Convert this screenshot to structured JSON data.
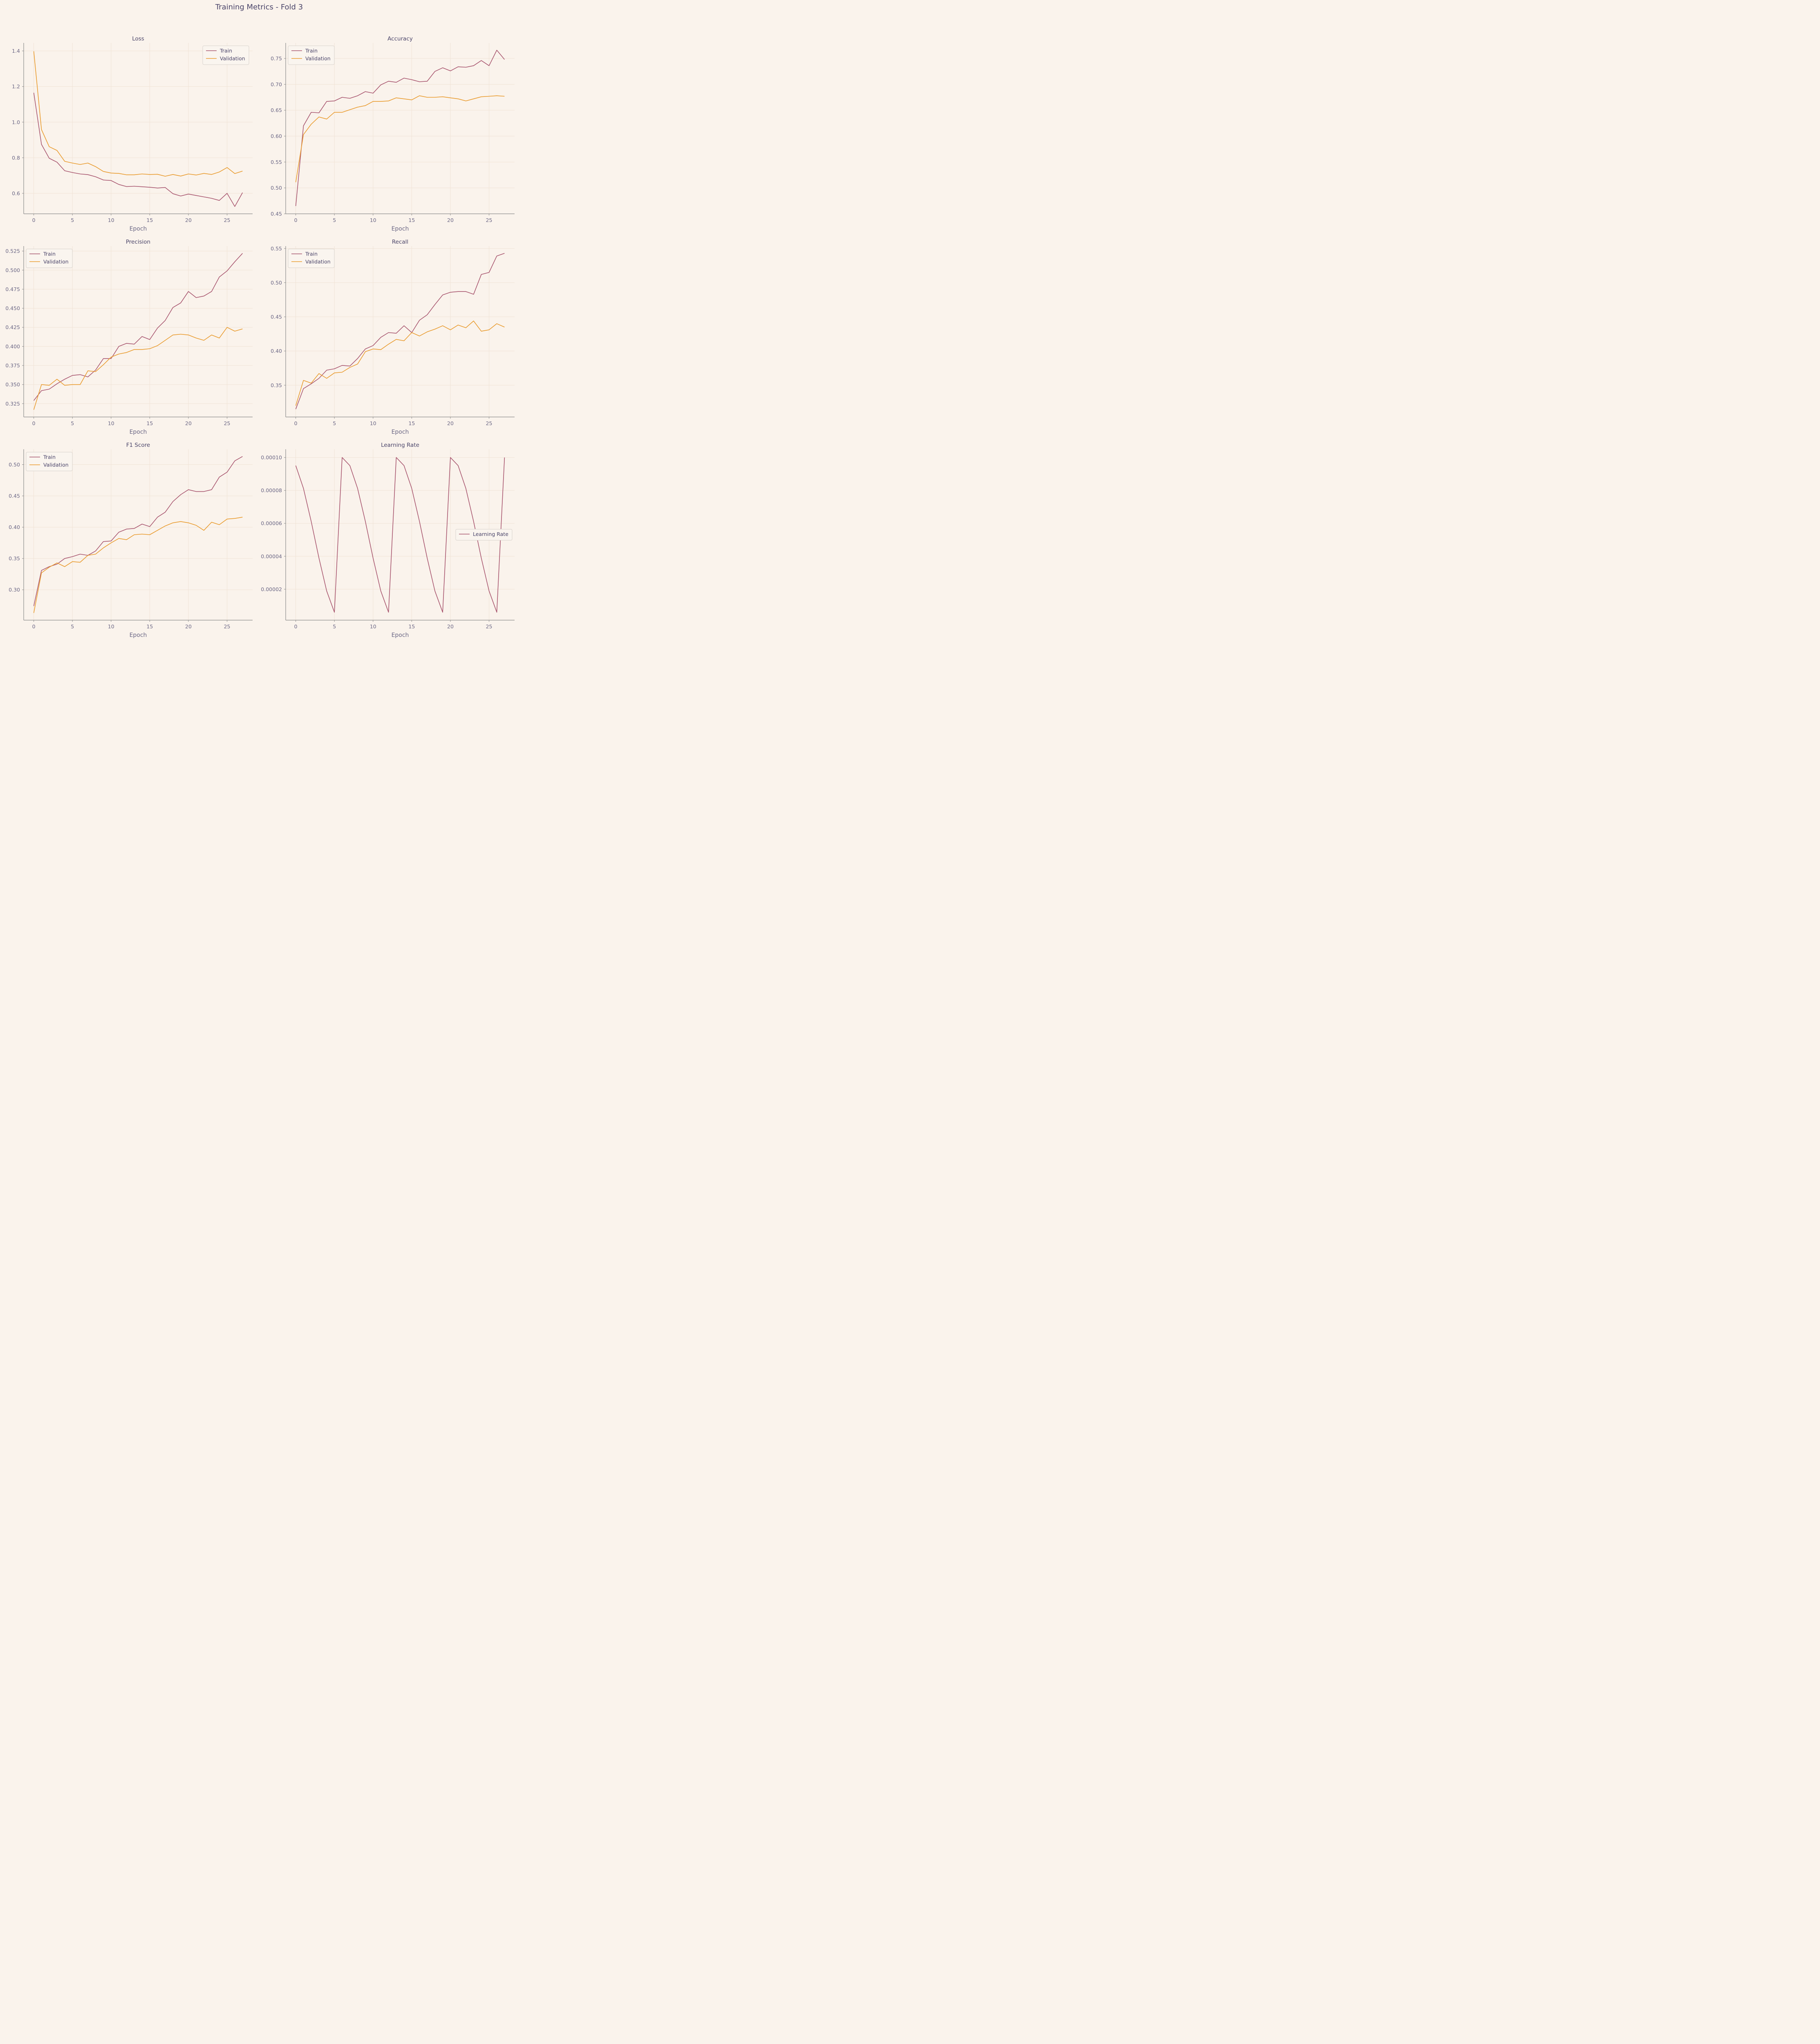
{
  "figure_title": "Training Metrics - Fold 3",
  "colors": {
    "train": "#a8566f",
    "validation": "#e99b2e",
    "background": "#faf3ec",
    "grid": "#f0e3d6",
    "axis": "#8a8a8a",
    "text": "#4a4469"
  },
  "chart_data": [
    {
      "type": "line",
      "title": "Loss",
      "xlabel": "Epoch",
      "ylabel": "",
      "xlim": [
        -1.3,
        28.3
      ],
      "ylim": [
        0.485,
        1.445
      ],
      "xticks": [
        0,
        5,
        10,
        15,
        20,
        25
      ],
      "yticks": [
        0.6,
        0.8,
        1.0,
        1.2,
        1.4
      ],
      "ytick_labels": [
        "0.6",
        "0.8",
        "1.0",
        "1.2",
        "1.4"
      ],
      "legend": "upper right",
      "x": [
        0,
        1,
        2,
        3,
        4,
        5,
        6,
        7,
        8,
        9,
        10,
        11,
        12,
        13,
        14,
        15,
        16,
        17,
        18,
        19,
        20,
        21,
        22,
        23,
        24,
        25,
        26,
        27
      ],
      "series": [
        {
          "name": "Train",
          "color": "#a8566f",
          "values": [
            1.165,
            0.875,
            0.797,
            0.775,
            0.727,
            0.717,
            0.709,
            0.705,
            0.693,
            0.675,
            0.672,
            0.65,
            0.638,
            0.64,
            0.637,
            0.634,
            0.63,
            0.633,
            0.598,
            0.585,
            0.596,
            0.588,
            0.58,
            0.572,
            0.56,
            0.6,
            0.526,
            0.604
          ]
        },
        {
          "name": "Validation",
          "color": "#e99b2e",
          "values": [
            1.398,
            0.958,
            0.862,
            0.841,
            0.78,
            0.77,
            0.762,
            0.77,
            0.75,
            0.723,
            0.714,
            0.712,
            0.704,
            0.704,
            0.709,
            0.706,
            0.707,
            0.696,
            0.706,
            0.697,
            0.709,
            0.703,
            0.712,
            0.706,
            0.72,
            0.745,
            0.711,
            0.725
          ]
        }
      ]
    },
    {
      "type": "line",
      "title": "Accuracy",
      "xlabel": "Epoch",
      "ylabel": "",
      "xlim": [
        -1.3,
        28.3
      ],
      "ylim": [
        0.45,
        0.78
      ],
      "xticks": [
        0,
        5,
        10,
        15,
        20,
        25
      ],
      "yticks": [
        0.45,
        0.5,
        0.55,
        0.6,
        0.65,
        0.7,
        0.75
      ],
      "ytick_labels": [
        "0.45",
        "0.50",
        "0.55",
        "0.60",
        "0.65",
        "0.70",
        "0.75"
      ],
      "legend": "upper left",
      "x": [
        0,
        1,
        2,
        3,
        4,
        5,
        6,
        7,
        8,
        9,
        10,
        11,
        12,
        13,
        14,
        15,
        16,
        17,
        18,
        19,
        20,
        21,
        22,
        23,
        24,
        25,
        26,
        27
      ],
      "series": [
        {
          "name": "Train",
          "color": "#a8566f",
          "values": [
            0.465,
            0.62,
            0.646,
            0.645,
            0.667,
            0.668,
            0.675,
            0.673,
            0.678,
            0.686,
            0.683,
            0.699,
            0.706,
            0.704,
            0.712,
            0.709,
            0.705,
            0.706,
            0.725,
            0.732,
            0.726,
            0.734,
            0.733,
            0.736,
            0.746,
            0.736,
            0.766,
            0.748
          ]
        },
        {
          "name": "Validation",
          "color": "#e99b2e",
          "values": [
            0.511,
            0.603,
            0.623,
            0.637,
            0.633,
            0.646,
            0.646,
            0.651,
            0.656,
            0.659,
            0.667,
            0.667,
            0.668,
            0.674,
            0.672,
            0.67,
            0.678,
            0.675,
            0.675,
            0.676,
            0.674,
            0.672,
            0.668,
            0.672,
            0.676,
            0.677,
            0.678,
            0.677
          ]
        }
      ]
    },
    {
      "type": "line",
      "title": "Precision",
      "xlabel": "Epoch",
      "ylabel": "",
      "xlim": [
        -1.3,
        28.3
      ],
      "ylim": [
        0.3075,
        0.5315
      ],
      "xticks": [
        0,
        5,
        10,
        15,
        20,
        25
      ],
      "yticks": [
        0.325,
        0.35,
        0.375,
        0.4,
        0.425,
        0.45,
        0.475,
        0.5,
        0.525
      ],
      "ytick_labels": [
        "0.325",
        "0.350",
        "0.375",
        "0.400",
        "0.425",
        "0.450",
        "0.475",
        "0.500",
        "0.525"
      ],
      "legend": "upper left",
      "x": [
        0,
        1,
        2,
        3,
        4,
        5,
        6,
        7,
        8,
        9,
        10,
        11,
        12,
        13,
        14,
        15,
        16,
        17,
        18,
        19,
        20,
        21,
        22,
        23,
        24,
        25,
        26,
        27
      ],
      "series": [
        {
          "name": "Train",
          "color": "#a8566f",
          "values": [
            0.329,
            0.342,
            0.344,
            0.351,
            0.357,
            0.362,
            0.363,
            0.36,
            0.369,
            0.384,
            0.384,
            0.4,
            0.404,
            0.403,
            0.413,
            0.409,
            0.424,
            0.434,
            0.451,
            0.457,
            0.472,
            0.464,
            0.466,
            0.472,
            0.491,
            0.499,
            0.511,
            0.522
          ]
        },
        {
          "name": "Validation",
          "color": "#e99b2e",
          "values": [
            0.317,
            0.35,
            0.349,
            0.357,
            0.349,
            0.35,
            0.35,
            0.368,
            0.367,
            0.376,
            0.386,
            0.39,
            0.392,
            0.396,
            0.396,
            0.397,
            0.401,
            0.408,
            0.415,
            0.416,
            0.415,
            0.411,
            0.408,
            0.415,
            0.411,
            0.425,
            0.42,
            0.423
          ]
        }
      ]
    },
    {
      "type": "line",
      "title": "Recall",
      "xlabel": "Epoch",
      "ylabel": "",
      "xlim": [
        -1.3,
        28.3
      ],
      "ylim": [
        0.3035,
        0.5535
      ],
      "xticks": [
        0,
        5,
        10,
        15,
        20,
        25
      ],
      "yticks": [
        0.35,
        0.4,
        0.45,
        0.5,
        0.55
      ],
      "ytick_labels": [
        "0.35",
        "0.40",
        "0.45",
        "0.50",
        "0.55"
      ],
      "legend": "upper left",
      "x": [
        0,
        1,
        2,
        3,
        4,
        5,
        6,
        7,
        8,
        9,
        10,
        11,
        12,
        13,
        14,
        15,
        16,
        17,
        18,
        19,
        20,
        21,
        22,
        23,
        24,
        25,
        26,
        27
      ],
      "series": [
        {
          "name": "Train",
          "color": "#a8566f",
          "values": [
            0.315,
            0.345,
            0.352,
            0.36,
            0.372,
            0.374,
            0.379,
            0.378,
            0.389,
            0.403,
            0.408,
            0.42,
            0.427,
            0.426,
            0.437,
            0.427,
            0.445,
            0.453,
            0.468,
            0.482,
            0.486,
            0.487,
            0.487,
            0.483,
            0.512,
            0.515,
            0.539,
            0.543
          ]
        },
        {
          "name": "Validation",
          "color": "#e99b2e",
          "values": [
            0.32,
            0.357,
            0.353,
            0.367,
            0.36,
            0.368,
            0.369,
            0.376,
            0.381,
            0.399,
            0.403,
            0.402,
            0.41,
            0.417,
            0.415,
            0.427,
            0.422,
            0.428,
            0.432,
            0.437,
            0.431,
            0.438,
            0.434,
            0.444,
            0.429,
            0.431,
            0.44,
            0.435
          ]
        }
      ]
    },
    {
      "type": "line",
      "title": "F1 Score",
      "xlabel": "Epoch",
      "ylabel": "",
      "xlim": [
        -1.3,
        28.3
      ],
      "ylim": [
        0.2515,
        0.5245
      ],
      "xticks": [
        0,
        5,
        10,
        15,
        20,
        25
      ],
      "yticks": [
        0.3,
        0.35,
        0.4,
        0.45,
        0.5
      ],
      "ytick_labels": [
        "0.30",
        "0.35",
        "0.40",
        "0.45",
        "0.50"
      ],
      "legend": "upper left",
      "x": [
        0,
        1,
        2,
        3,
        4,
        5,
        6,
        7,
        8,
        9,
        10,
        11,
        12,
        13,
        14,
        15,
        16,
        17,
        18,
        19,
        20,
        21,
        22,
        23,
        24,
        25,
        26,
        27
      ],
      "series": [
        {
          "name": "Train",
          "color": "#a8566f",
          "values": [
            0.274,
            0.331,
            0.337,
            0.341,
            0.35,
            0.353,
            0.357,
            0.355,
            0.362,
            0.377,
            0.378,
            0.392,
            0.397,
            0.398,
            0.405,
            0.401,
            0.416,
            0.424,
            0.441,
            0.452,
            0.46,
            0.457,
            0.457,
            0.46,
            0.48,
            0.488,
            0.506,
            0.513
          ]
        },
        {
          "name": "Validation",
          "color": "#e99b2e",
          "values": [
            0.263,
            0.327,
            0.336,
            0.343,
            0.337,
            0.345,
            0.344,
            0.355,
            0.357,
            0.367,
            0.375,
            0.382,
            0.38,
            0.388,
            0.389,
            0.388,
            0.395,
            0.402,
            0.407,
            0.409,
            0.407,
            0.403,
            0.395,
            0.408,
            0.404,
            0.413,
            0.414,
            0.416
          ]
        }
      ]
    },
    {
      "type": "line",
      "title": "Learning Rate",
      "xlabel": "Epoch",
      "ylabel": "",
      "xlim": [
        -1.3,
        28.3
      ],
      "ylim": [
        1.2e-06,
        0.000105
      ],
      "xticks": [
        0,
        5,
        10,
        15,
        20,
        25
      ],
      "yticks": [
        2e-05,
        4e-05,
        6e-05,
        8e-05,
        0.0001
      ],
      "ytick_labels": [
        "0.00002",
        "0.00004",
        "0.00006",
        "0.00008",
        "0.00010"
      ],
      "legend": "center right",
      "x": [
        0,
        1,
        2,
        3,
        4,
        5,
        6,
        7,
        8,
        9,
        10,
        11,
        12,
        13,
        14,
        15,
        16,
        17,
        18,
        19,
        20,
        21,
        22,
        23,
        24,
        25,
        26,
        27
      ],
      "series": [
        {
          "name": "Learning Rate",
          "color": "#a8566f",
          "values": [
            9.51e-05,
            8.12e-05,
            6.12e-05,
            3.89e-05,
            1.89e-05,
            6e-06,
            0.0001,
            9.51e-05,
            8.12e-05,
            6.12e-05,
            3.89e-05,
            1.89e-05,
            6e-06,
            0.0001,
            9.51e-05,
            8.12e-05,
            6.12e-05,
            3.89e-05,
            1.89e-05,
            6e-06,
            0.0001,
            9.51e-05,
            8.12e-05,
            6.12e-05,
            3.89e-05,
            1.89e-05,
            6e-06,
            0.0001
          ]
        }
      ]
    }
  ]
}
